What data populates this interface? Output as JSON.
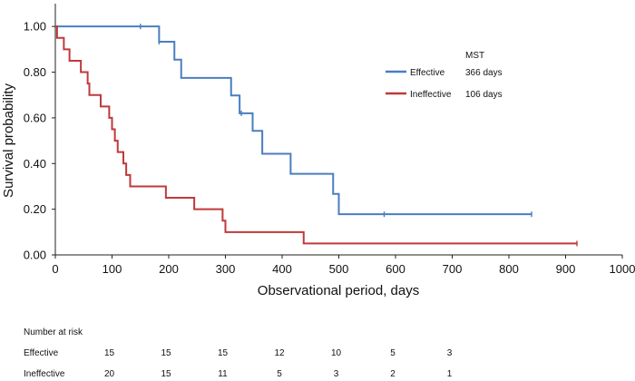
{
  "chart_data": {
    "type": "line",
    "subtype": "kaplan-meier",
    "xlabel": "Observational period, days",
    "ylabel": "Survival probability",
    "xlim": [
      0,
      1000
    ],
    "ylim": [
      0,
      1.1
    ],
    "x_ticks": [
      0,
      100,
      200,
      300,
      400,
      500,
      600,
      700,
      800,
      900,
      1000
    ],
    "y_ticks": [
      0,
      0.2,
      0.4,
      0.6,
      0.8,
      1.0
    ],
    "y_tick_labels": [
      "0.00",
      "0.20",
      "0.40",
      "0.60",
      "0.80",
      "1.00"
    ],
    "grid": false,
    "legend": {
      "title": "MST",
      "placement": "top-right",
      "entries": [
        {
          "name": "Effective",
          "mst": "366 days"
        },
        {
          "name": "Ineffective",
          "mst": "106 days"
        }
      ]
    },
    "series": [
      {
        "name": "Effective",
        "color": "#4a7ec0",
        "steps": [
          [
            0,
            1.0
          ],
          [
            183,
            0.933
          ],
          [
            210,
            0.855
          ],
          [
            222,
            0.775
          ],
          [
            310,
            0.698
          ],
          [
            325,
            0.62
          ],
          [
            348,
            0.543
          ],
          [
            365,
            0.443
          ],
          [
            415,
            0.355
          ],
          [
            490,
            0.267
          ],
          [
            500,
            0.178
          ],
          [
            840,
            0.178
          ]
        ],
        "censored": [
          [
            150,
            1.0
          ],
          [
            183,
            0.933
          ],
          [
            328,
            0.62
          ],
          [
            580,
            0.178
          ],
          [
            840,
            0.178
          ]
        ]
      },
      {
        "name": "Ineffective",
        "color": "#c0393b",
        "steps": [
          [
            0,
            1.0
          ],
          [
            3,
            0.95
          ],
          [
            15,
            0.9
          ],
          [
            25,
            0.85
          ],
          [
            45,
            0.8
          ],
          [
            57,
            0.75
          ],
          [
            60,
            0.7
          ],
          [
            80,
            0.65
          ],
          [
            95,
            0.6
          ],
          [
            100,
            0.55
          ],
          [
            105,
            0.5
          ],
          [
            110,
            0.45
          ],
          [
            120,
            0.4
          ],
          [
            125,
            0.35
          ],
          [
            132,
            0.3
          ],
          [
            195,
            0.25
          ],
          [
            245,
            0.2
          ],
          [
            295,
            0.15
          ],
          [
            300,
            0.1
          ],
          [
            438,
            0.05
          ],
          [
            920,
            0.05
          ]
        ],
        "censored": [
          [
            920,
            0.05
          ]
        ]
      }
    ],
    "risk_table": {
      "title": "Number at risk",
      "times": [
        100,
        200,
        300,
        400,
        500,
        600,
        700
      ],
      "rows": [
        {
          "label": "Effective",
          "values": [
            15,
            15,
            15,
            12,
            10,
            5,
            3
          ]
        },
        {
          "label": "Ineffective",
          "values": [
            20,
            15,
            11,
            5,
            3,
            2,
            1
          ]
        }
      ]
    }
  }
}
